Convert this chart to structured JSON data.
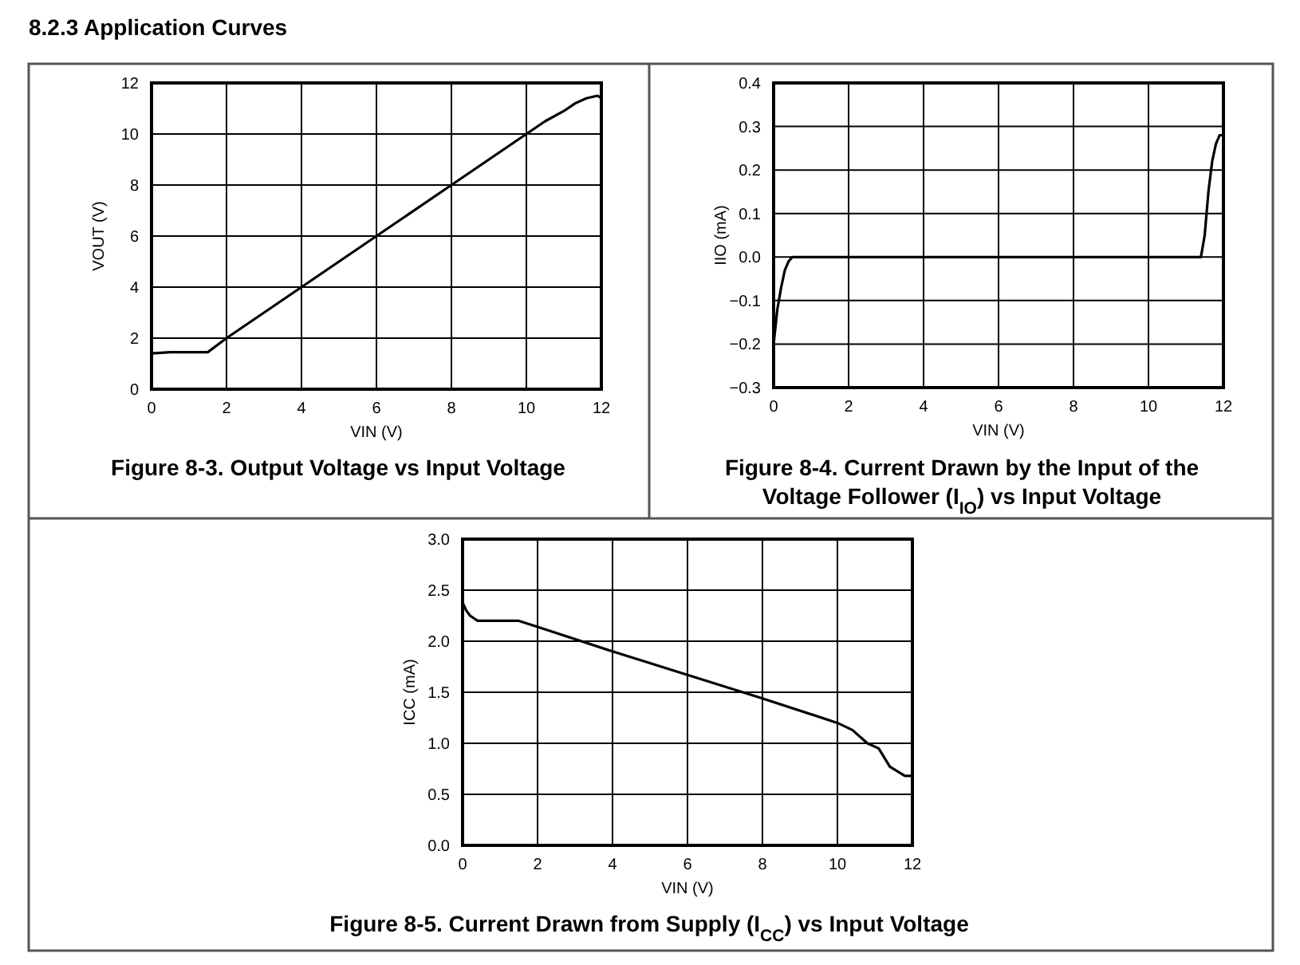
{
  "chart_data": [
    {
      "type": "line",
      "title": "Figure 8-3. Output Voltage vs Input Voltage",
      "annotations": [
        "8.2.3 Application Curves"
      ],
      "xlabel": "VIN (V)",
      "ylabel": "VOUT (V)",
      "xlim": [
        0,
        12
      ],
      "ylim": [
        0,
        12
      ],
      "xticks": [
        0,
        2,
        4,
        6,
        8,
        10,
        12
      ],
      "yticks": [
        0,
        2,
        4,
        6,
        8,
        10,
        12
      ],
      "grid": true,
      "series": [
        {
          "color": "#000000",
          "x": [
            0,
            0.5,
            1,
            1.5,
            2,
            4,
            6,
            8,
            10,
            10.5,
            11,
            11.3,
            11.6,
            11.9,
            12
          ],
          "values": [
            1.4,
            1.45,
            1.45,
            1.45,
            2,
            4,
            6,
            8,
            10,
            10.5,
            10.9,
            11.2,
            11.4,
            11.5,
            11.4
          ]
        }
      ]
    },
    {
      "type": "line",
      "title": "Figure 8-4. Current Drawn by the Input of the Voltage Follower (I$_{IO}$) vs Input Voltage",
      "xlabel": "VIN (V)",
      "ylabel": "IIO (mA)",
      "xlim": [
        0,
        12
      ],
      "ylim": [
        -0.3,
        0.4
      ],
      "xticks": [
        0,
        2,
        4,
        6,
        8,
        10,
        12
      ],
      "yticks": [
        {
          "value": -0.3,
          "label": "−0.3"
        },
        {
          "value": -0.2,
          "label": "−0.2"
        },
        {
          "value": -0.1,
          "label": "−0.1"
        },
        {
          "value": 0,
          "label": "0.0"
        },
        {
          "value": 0.1,
          "label": "0.1"
        },
        {
          "value": 0.2,
          "label": "0.2"
        },
        {
          "value": 0.3,
          "label": "0.3"
        },
        {
          "value": 0.4,
          "label": "0.4"
        }
      ],
      "grid": true,
      "series": [
        {
          "color": "#000000",
          "x": [
            0,
            0.1,
            0.2,
            0.3,
            0.4,
            0.5,
            2,
            6,
            10,
            11.4,
            11.5,
            11.6,
            11.7,
            11.8,
            11.9,
            12
          ],
          "values": [
            -0.2,
            -0.12,
            -0.07,
            -0.03,
            -0.01,
            0,
            0,
            0,
            0,
            0,
            0.05,
            0.15,
            0.22,
            0.26,
            0.28,
            0.28
          ]
        }
      ]
    },
    {
      "type": "line",
      "title": "Figure 8-5. Current Drawn from Supply (I$_{CC}$) vs Input Voltage",
      "xlabel": "VIN (V)",
      "ylabel": "ICC (mA)",
      "xlim": [
        0,
        12
      ],
      "ylim": [
        0,
        3
      ],
      "xticks": [
        0,
        2,
        4,
        6,
        8,
        10,
        12
      ],
      "yticks": [
        {
          "value": 0,
          "label": "0.0"
        },
        {
          "value": 0.5,
          "label": "0.5"
        },
        {
          "value": 1,
          "label": "1.0"
        },
        {
          "value": 1.5,
          "label": "1.5"
        },
        {
          "value": 2,
          "label": "2.0"
        },
        {
          "value": 2.5,
          "label": "2.5"
        },
        {
          "value": 3,
          "label": "3.0"
        }
      ],
      "grid": true,
      "series": [
        {
          "color": "#000000",
          "x": [
            0,
            0.1,
            0.2,
            0.4,
            1,
            1.5,
            2,
            4,
            6,
            8,
            10,
            10.4,
            10.8,
            11.1,
            11.4,
            11.8,
            12
          ],
          "values": [
            2.38,
            2.3,
            2.25,
            2.2,
            2.2,
            2.2,
            2.14,
            1.9,
            1.67,
            1.44,
            1.2,
            1.13,
            1.0,
            0.95,
            0.77,
            0.68,
            0.68
          ]
        }
      ]
    }
  ]
}
